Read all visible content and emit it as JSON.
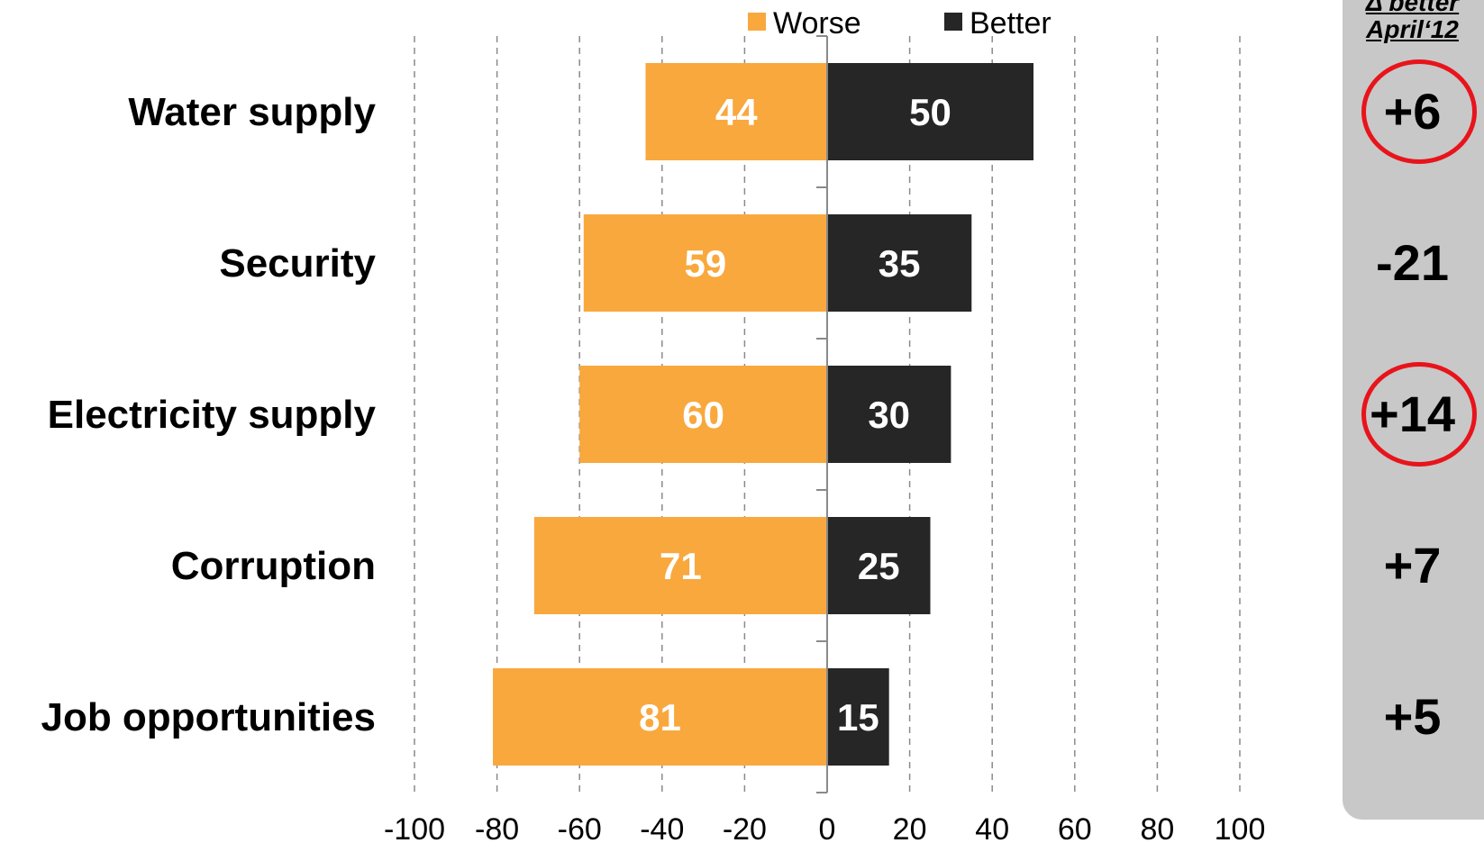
{
  "chart_data": {
    "type": "bar",
    "orientation": "horizontal",
    "stacked": "diverging",
    "categories": [
      "Water supply",
      "Security",
      "Electricity supply",
      "Corruption",
      "Job opportunities"
    ],
    "series": [
      {
        "name": "Worse",
        "values": [
          44,
          59,
          60,
          71,
          81
        ],
        "direction": "negative",
        "color": "#f9a83e"
      },
      {
        "name": "Better",
        "values": [
          50,
          35,
          30,
          25,
          15
        ],
        "direction": "positive",
        "color": "#262626"
      }
    ],
    "xlim": [
      -100,
      100
    ],
    "xticks": [
      "-100",
      "-80",
      "-60",
      "-40",
      "-20",
      "0",
      "20",
      "40",
      "60",
      "80",
      "100"
    ],
    "grid": "vertical-dashed",
    "legend_position": "top",
    "title": "",
    "xlabel": "",
    "ylabel": ""
  },
  "side_panel": {
    "header_line1": "Δ better",
    "header_line2": "April‘12",
    "deltas": [
      {
        "value": "+6",
        "circled": true
      },
      {
        "value": "-21",
        "circled": false
      },
      {
        "value": "+14",
        "circled": true
      },
      {
        "value": "+7",
        "circled": false
      },
      {
        "value": "+5",
        "circled": false
      }
    ],
    "background": "#c8c8c8",
    "circle_color": "#e8141b"
  }
}
